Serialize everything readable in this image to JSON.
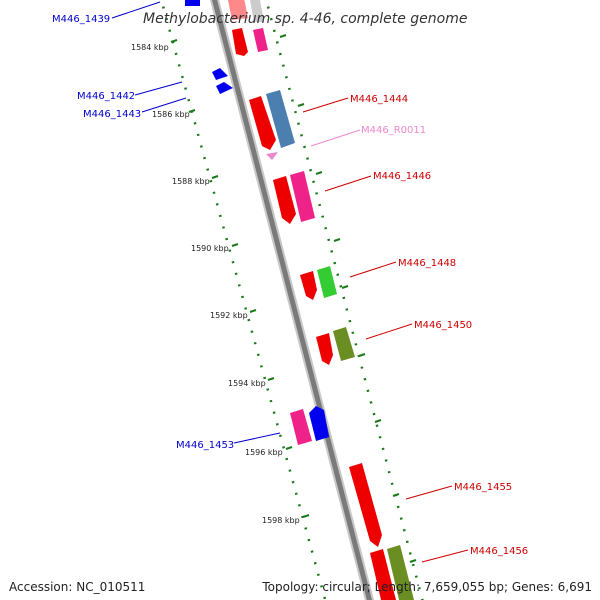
{
  "title": "Methylobacterium sp. 4-46, complete genome",
  "footer": {
    "accession": "Accession: NC_010511",
    "summary": "Topology: circular; Length: 7,659,055 bp; Genes: 6,691"
  },
  "colors": {
    "backbone": "#888888",
    "tick": "#1a7a1a",
    "forward_label": "#cc0000",
    "reverse_label": "#0000cc",
    "rna_label": "#ee88cc"
  },
  "ticks": [
    {
      "label": "1584 kbp"
    },
    {
      "label": "1586 kbp"
    },
    {
      "label": "1588 kbp"
    },
    {
      "label": "1590 kbp"
    },
    {
      "label": "1592 kbp"
    },
    {
      "label": "1594 kbp"
    },
    {
      "label": "1596 kbp"
    },
    {
      "label": "1598 kbp"
    }
  ],
  "labels": [
    {
      "text": "M446_1439",
      "strand": "reverse"
    },
    {
      "text": "M446_1442",
      "strand": "reverse"
    },
    {
      "text": "M446_1443",
      "strand": "reverse"
    },
    {
      "text": "M446_1444",
      "strand": "forward"
    },
    {
      "text": "M446_R0011",
      "strand": "rna"
    },
    {
      "text": "M446_1446",
      "strand": "forward"
    },
    {
      "text": "M446_1448",
      "strand": "forward"
    },
    {
      "text": "M446_1450",
      "strand": "forward"
    },
    {
      "text": "M446_1453",
      "strand": "reverse"
    },
    {
      "text": "M446_1455",
      "strand": "forward"
    },
    {
      "text": "M446_1456",
      "strand": "forward"
    }
  ]
}
